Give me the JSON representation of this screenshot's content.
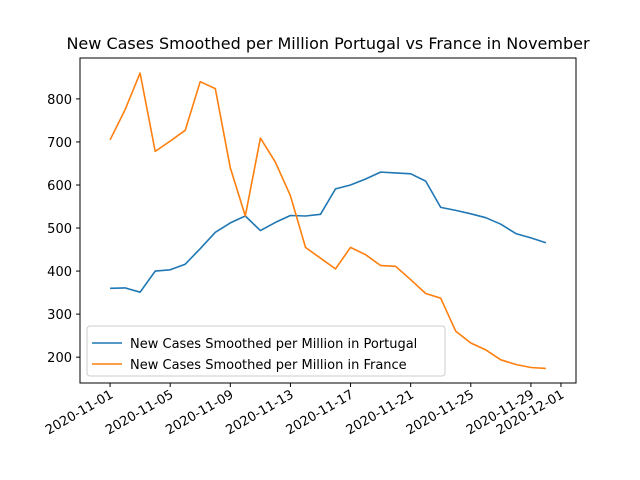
{
  "chart_data": {
    "type": "line",
    "title": "New Cases Smoothed per Million Portugal vs France in November",
    "xlabel": "",
    "ylabel": "",
    "x": [
      "2020-11-01",
      "2020-11-02",
      "2020-11-03",
      "2020-11-04",
      "2020-11-05",
      "2020-11-06",
      "2020-11-07",
      "2020-11-08",
      "2020-11-09",
      "2020-11-10",
      "2020-11-11",
      "2020-11-12",
      "2020-11-13",
      "2020-11-14",
      "2020-11-15",
      "2020-11-16",
      "2020-11-17",
      "2020-11-18",
      "2020-11-19",
      "2020-11-20",
      "2020-11-21",
      "2020-11-22",
      "2020-11-23",
      "2020-11-24",
      "2020-11-25",
      "2020-11-26",
      "2020-11-27",
      "2020-11-28",
      "2020-11-29",
      "2020-11-30"
    ],
    "series": [
      {
        "name": "New Cases Smoothed per Million in Portugal",
        "color": "#1f77b4",
        "values": [
          360,
          361,
          351,
          400,
          403,
          416,
          452,
          490,
          512,
          528,
          494,
          513,
          529,
          528,
          532,
          591,
          600,
          614,
          630,
          628,
          626,
          609,
          548,
          541,
          533,
          524,
          509,
          487,
          477,
          466
        ]
      },
      {
        "name": "New Cases Smoothed per Million in France",
        "color": "#ff7f0e",
        "values": [
          705,
          775,
          860,
          678,
          702,
          727,
          840,
          824,
          640,
          528,
          709,
          653,
          575,
          455,
          430,
          405,
          455,
          438,
          413,
          411,
          380,
          348,
          337,
          260,
          233,
          217,
          194,
          183,
          176,
          174
        ]
      }
    ],
    "ylim": [
      140,
      895
    ],
    "yticks": [
      200,
      300,
      400,
      500,
      600,
      700,
      800
    ],
    "xticks": [
      "2020-11-01",
      "2020-11-05",
      "2020-11-09",
      "2020-11-13",
      "2020-11-17",
      "2020-11-21",
      "2020-11-25",
      "2020-11-29",
      "2020-12-01"
    ],
    "grid": false,
    "legend_position": "lower-left"
  }
}
